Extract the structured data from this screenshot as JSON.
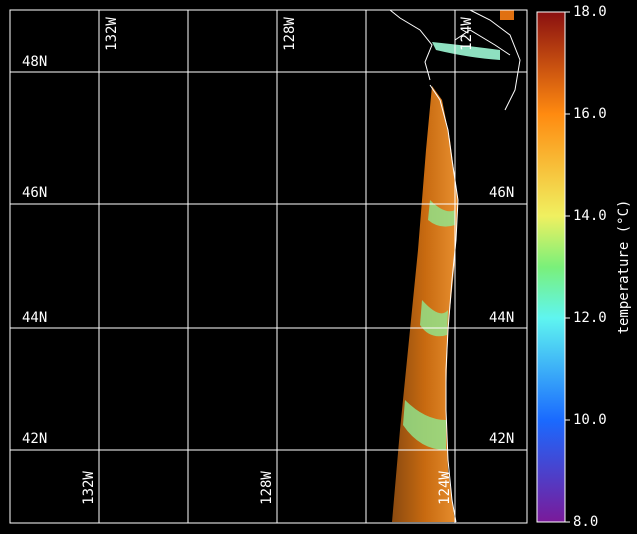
{
  "map": {
    "lat_labels_left": [
      "48N",
      "46N",
      "44N",
      "42N"
    ],
    "lat_labels_right": [
      "46N",
      "44N",
      "42N"
    ],
    "lon_labels_top": [
      "132W",
      "128W",
      "124W"
    ],
    "lon_labels_bottom": [
      "132W",
      "128W",
      "124W"
    ]
  },
  "colorbar": {
    "label": "temperature (°C)",
    "lim": [
      8,
      18
    ],
    "ticks": [
      {
        "value": 8,
        "label": "8.0"
      },
      {
        "value": 10,
        "label": "10.0"
      },
      {
        "value": 12,
        "label": "12.0"
      },
      {
        "value": 14,
        "label": "14.0"
      },
      {
        "value": 16,
        "label": "16.0"
      },
      {
        "value": 18,
        "label": "18.0"
      }
    ]
  }
}
